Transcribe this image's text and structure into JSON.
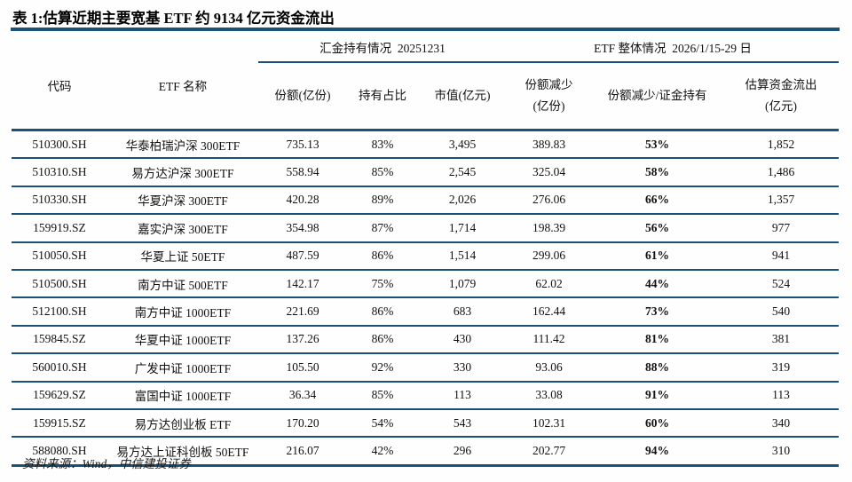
{
  "title": "表 1:估算近期主要宽基 ETF 约 9134 亿元资金流出",
  "colors": {
    "rule": "#1a5276",
    "text": "#111111",
    "background": "#fefefe"
  },
  "table": {
    "group_headers": [
      {
        "label": "汇金持有情况  20251231",
        "span": 3
      },
      {
        "label": "ETF 整体情况  2026/1/15-29 日",
        "span": 3
      }
    ],
    "columns": [
      "代码",
      "ETF 名称",
      "份额(亿份)",
      "持有占比",
      "市值(亿元)",
      "份额减少\n(亿份)",
      "份额减少/证金持有",
      "估算资金流出\n(亿元)"
    ],
    "rows": [
      {
        "cells": [
          "510300.SH",
          "华泰柏瑞沪深 300ETF",
          "735.13",
          "83%",
          "3,495",
          "389.83",
          "53%",
          "1,852"
        ]
      },
      {
        "cells": [
          "510310.SH",
          "易方达沪深 300ETF",
          "558.94",
          "85%",
          "2,545",
          "325.04",
          "58%",
          "1,486"
        ]
      },
      {
        "cells": [
          "510330.SH",
          "华夏沪深 300ETF",
          "420.28",
          "89%",
          "2,026",
          "276.06",
          "66%",
          "1,357"
        ]
      },
      {
        "cells": [
          "159919.SZ",
          "嘉实沪深 300ETF",
          "354.98",
          "87%",
          "1,714",
          "198.39",
          "56%",
          "977"
        ]
      },
      {
        "cells": [
          "510050.SH",
          "华夏上证 50ETF",
          "487.59",
          "86%",
          "1,514",
          "299.06",
          "61%",
          "941"
        ]
      },
      {
        "cells": [
          "510500.SH",
          "南方中证 500ETF",
          "142.17",
          "75%",
          "1,079",
          "62.02",
          "44%",
          "524"
        ]
      },
      {
        "cells": [
          "512100.SH",
          "南方中证 1000ETF",
          "221.69",
          "86%",
          "683",
          "162.44",
          "73%",
          "540"
        ]
      },
      {
        "cells": [
          "159845.SZ",
          "华夏中证 1000ETF",
          "137.26",
          "86%",
          "430",
          "111.42",
          "81%",
          "381"
        ]
      },
      {
        "cells": [
          "560010.SH",
          "广发中证 1000ETF",
          "105.50",
          "92%",
          "330",
          "93.06",
          "88%",
          "319"
        ]
      },
      {
        "cells": [
          "159629.SZ",
          "富国中证 1000ETF",
          "36.34",
          "85%",
          "113",
          "33.08",
          "91%",
          "113"
        ]
      },
      {
        "cells": [
          "159915.SZ",
          "易方达创业板 ETF",
          "170.20",
          "54%",
          "543",
          "102.31",
          "60%",
          "340"
        ]
      },
      {
        "cells": [
          "588080.SH",
          "易方达上证科创板 50ETF",
          "216.07",
          "42%",
          "296",
          "202.77",
          "94%",
          "310"
        ]
      }
    ],
    "bold_column_index": 6
  },
  "footer": {
    "source": "资料来源：Wind，中信建投证券"
  }
}
